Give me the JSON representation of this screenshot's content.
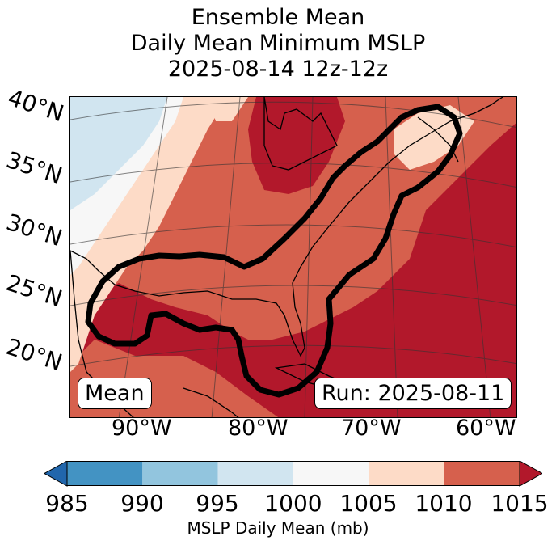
{
  "title": {
    "line1": "Ensemble Mean",
    "line2": "Daily Mean Minimum MSLP",
    "line3": "2025-08-14 12z-12z"
  },
  "map": {
    "latitude_labels": [
      "40°N",
      "35°N",
      "30°N",
      "25°N",
      "20°N"
    ],
    "longitude_labels": [
      "90°W",
      "80°W",
      "70°W",
      "60°W"
    ],
    "left_box": "Mean",
    "right_box": "Run: 2025-08-11"
  },
  "colorbar": {
    "label": "MSLP Daily Mean (mb)",
    "ticks": [
      "985",
      "990",
      "995",
      "1000",
      "1005",
      "1010",
      "1015"
    ],
    "colors": {
      "below": "#2166ac",
      "985-990": "#4393c3",
      "990-995": "#92c5de",
      "995-1000": "#d1e5f0",
      "1000-1005": "#f7f7f7",
      "1005-1010": "#fddbc7",
      "1010-1015": "#d6604d",
      "above": "#b2182b"
    }
  }
}
